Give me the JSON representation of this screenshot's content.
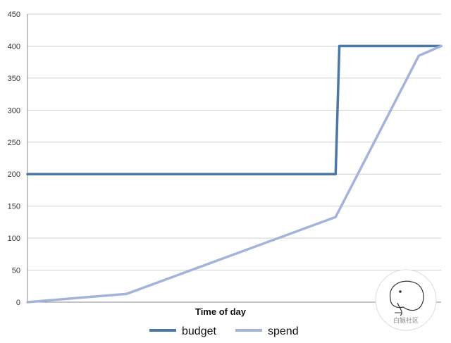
{
  "chart_data": {
    "type": "line",
    "title": "",
    "xlabel": "Time of day",
    "ylabel": "",
    "ylim": [
      0,
      450
    ],
    "yticks": [
      0,
      50,
      100,
      150,
      200,
      250,
      300,
      350,
      400,
      450
    ],
    "xlim": [
      0,
      100
    ],
    "grid": true,
    "legend_position": "bottom",
    "series": [
      {
        "name": "budget",
        "color": "#4a76a8",
        "x": [
          0,
          74.5,
          75.4,
          100
        ],
        "y": [
          200,
          200,
          400,
          400
        ]
      },
      {
        "name": "spend",
        "color": "#a4b3da",
        "x": [
          0,
          24,
          74.5,
          94.6,
          100
        ],
        "y": [
          0,
          13,
          133,
          385,
          400
        ]
      }
    ]
  },
  "watermark": {
    "icon": "cartoon-face-icon",
    "text": "白鲸社区"
  }
}
